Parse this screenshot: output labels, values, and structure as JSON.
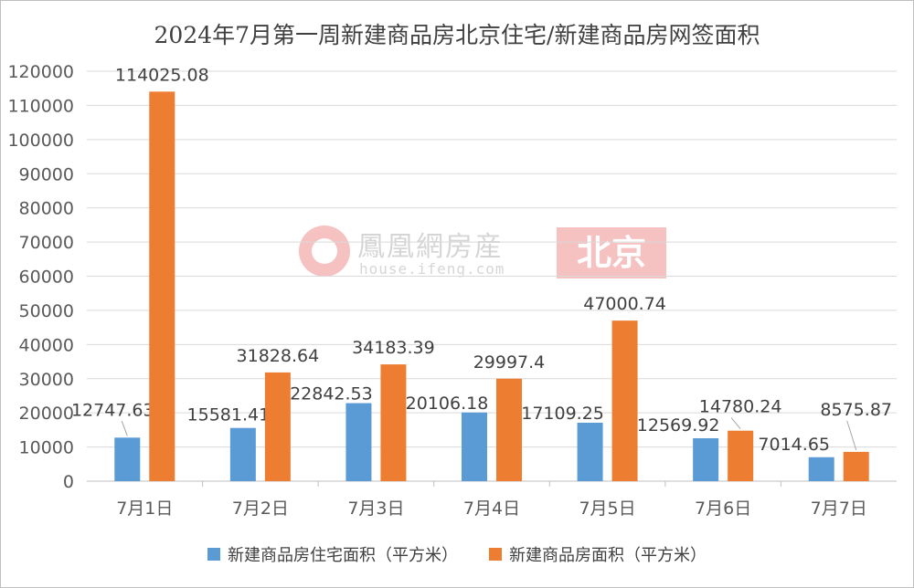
{
  "chart_data": {
    "type": "bar",
    "title": "2024年7月第一周新建商品房北京住宅/新建商品房网签面积",
    "categories": [
      "7月1日",
      "7月2日",
      "7月3日",
      "7月4日",
      "7月5日",
      "7月6日",
      "7月7日"
    ],
    "series": [
      {
        "name": "新建商品房住宅面积（平方米）",
        "color": "#5b9bd5",
        "values": [
          12747.63,
          15581.41,
          22842.53,
          20106.18,
          17109.25,
          12569.92,
          7014.65
        ],
        "labels": [
          "12747.63",
          "15581.41",
          "22842.53",
          "20106.18",
          "17109.25",
          "12569.92",
          "7014.65"
        ]
      },
      {
        "name": "新建商品房面积（平方米）",
        "color": "#ed7d31",
        "values": [
          114025.08,
          31828.64,
          34183.39,
          29997.4,
          47000.74,
          14780.24,
          8575.87
        ],
        "labels": [
          "114025.08",
          "31828.64",
          "34183.39",
          "29997.4",
          "47000.74",
          "14780.24",
          "8575.87"
        ]
      }
    ],
    "ylim": [
      0,
      120000
    ],
    "yticks": [
      0,
      10000,
      20000,
      30000,
      40000,
      50000,
      60000,
      70000,
      80000,
      90000,
      100000,
      110000,
      120000
    ],
    "grid": true,
    "legend": "bottom"
  },
  "watermark": {
    "name": "鳳凰網房産",
    "url": "house.ifeng.com",
    "city": "北京"
  }
}
